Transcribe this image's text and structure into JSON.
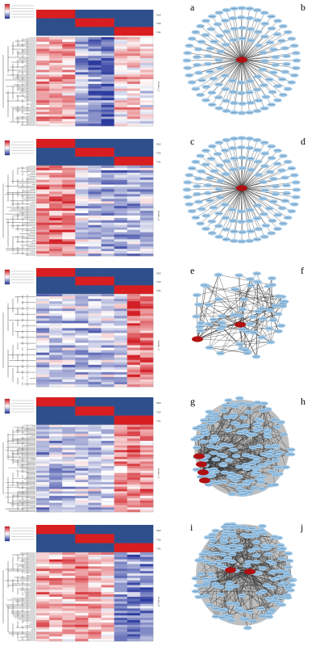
{
  "panel_letters": [
    "a",
    "b",
    "c",
    "d",
    "e",
    "f",
    "g",
    "h",
    "i",
    "j"
  ],
  "heatmaps": [
    {
      "id": "a",
      "row_tag": "cluster_1",
      "annotation_labels": [
        "SN2",
        "TN2",
        "TN1"
      ]
    },
    {
      "id": "c",
      "row_tag": "cluster_2",
      "annotation_labels": [
        "SN2",
        "TN2",
        "TN1"
      ]
    },
    {
      "id": "e",
      "row_tag": "cluster_3",
      "annotation_labels": [
        "SN2",
        "TN2",
        "TN1"
      ]
    },
    {
      "id": "g",
      "row_tag": "cluster_4",
      "annotation_labels": [
        "SN2",
        "TN2",
        "TN1"
      ]
    },
    {
      "id": "i",
      "row_tag": "cluster_5",
      "annotation_labels": [
        "SN2",
        "TN2",
        "TN1"
      ]
    }
  ],
  "networks": [
    {
      "id": "b",
      "hub_count": 1,
      "style": "star"
    },
    {
      "id": "d",
      "style": "star",
      "hub_count": 1
    },
    {
      "id": "f",
      "style": "mesh",
      "hub_count": 2
    },
    {
      "id": "h",
      "style": "dense",
      "hub_count": 4
    },
    {
      "id": "j",
      "style": "dense",
      "hub_count": 2
    }
  ],
  "colors": {
    "high": "#d21f26",
    "low": "#2b3a9e",
    "mid": "#ffffff",
    "node": "#9fc9ea",
    "hub": "#b01010",
    "annot_red": "#d81e20",
    "annot_blue": "#2f4f8c"
  }
}
